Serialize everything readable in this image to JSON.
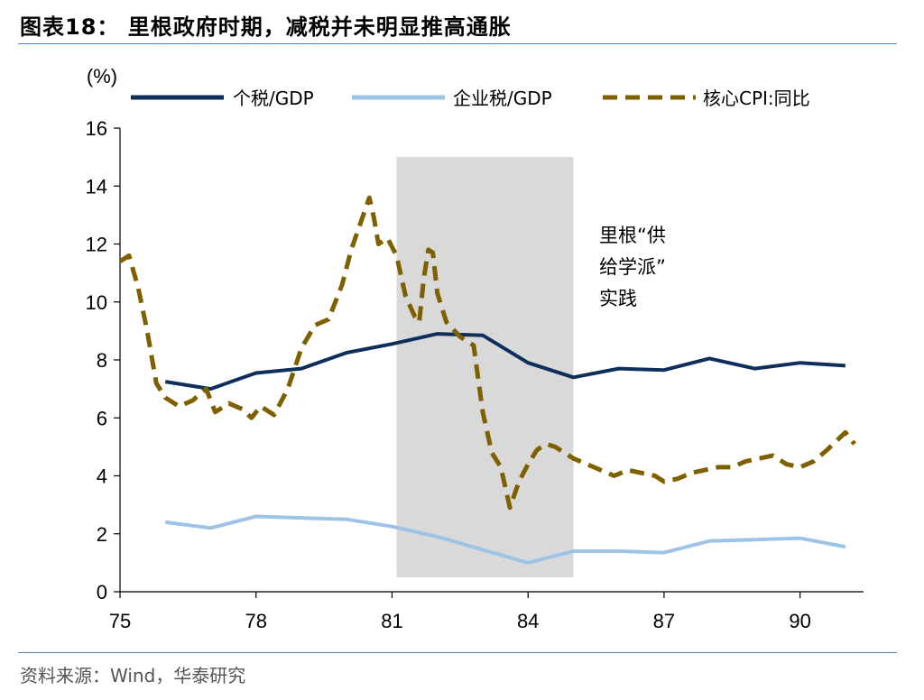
{
  "figure": {
    "title": "图表18： 里根政府时期，减税并未明显推高通胀",
    "source": "资料来源：Wind，华泰研究"
  },
  "chart_data": {
    "type": "line",
    "unit_label": "(%)",
    "xlim": [
      75,
      91.4
    ],
    "ylim": [
      0,
      16
    ],
    "x_ticks": [
      75,
      78,
      81,
      84,
      87,
      90
    ],
    "x_tick_labels": [
      "75",
      "78",
      "81",
      "84",
      "87",
      "90"
    ],
    "y_ticks": [
      0,
      2,
      4,
      6,
      8,
      10,
      12,
      14,
      16
    ],
    "y_tick_labels": [
      "0",
      "2",
      "4",
      "6",
      "8",
      "10",
      "12",
      "14",
      "16"
    ],
    "legend_position": "top",
    "shaded_region": {
      "x": [
        81.1,
        85
      ],
      "y": [
        0.5,
        15
      ],
      "color": "#d9d9d9",
      "annotation": [
        "里根“供",
        "给学派”",
        "实践"
      ]
    },
    "series": [
      {
        "name": "个税/GDP",
        "color": "#0e2f5c",
        "style": "solid",
        "x": [
          76,
          77,
          78,
          79,
          80,
          81,
          82,
          83,
          84,
          85,
          86,
          87,
          88,
          89,
          90,
          91
        ],
        "y": [
          7.25,
          7.0,
          7.55,
          7.7,
          8.25,
          8.55,
          8.9,
          8.85,
          7.9,
          7.4,
          7.7,
          7.65,
          8.05,
          7.7,
          7.9,
          7.8
        ]
      },
      {
        "name": "企业税/GDP",
        "color": "#9dc3e6",
        "style": "solid",
        "x": [
          76,
          77,
          78,
          79,
          80,
          81,
          82,
          83,
          84,
          85,
          86,
          87,
          88,
          89,
          90,
          91
        ],
        "y": [
          2.4,
          2.2,
          2.6,
          2.55,
          2.5,
          2.25,
          1.9,
          1.45,
          1.0,
          1.4,
          1.4,
          1.35,
          1.75,
          1.8,
          1.85,
          1.55
        ]
      },
      {
        "name": "核心CPI:同比",
        "color": "#7f6000",
        "style": "dashed",
        "x": [
          75.0,
          75.2,
          75.4,
          75.6,
          75.8,
          76.0,
          76.3,
          76.6,
          76.9,
          77.1,
          77.4,
          77.7,
          77.9,
          78.1,
          78.4,
          78.7,
          79.0,
          79.3,
          79.6,
          79.9,
          80.1,
          80.3,
          80.5,
          80.6,
          80.7,
          80.9,
          81.1,
          81.3,
          81.5,
          81.6,
          81.7,
          81.8,
          81.9,
          82.0,
          82.2,
          82.5,
          82.8,
          83.0,
          83.2,
          83.4,
          83.6,
          83.8,
          84.0,
          84.2,
          84.4,
          84.6,
          84.8,
          85.0,
          85.3,
          85.6,
          85.9,
          86.2,
          86.5,
          86.8,
          87.0,
          87.3,
          87.6,
          87.9,
          88.2,
          88.5,
          88.8,
          89.1,
          89.4,
          89.7,
          90.0,
          90.3,
          90.6,
          90.8,
          91.0,
          91.2
        ],
        "y": [
          11.4,
          11.6,
          10.5,
          9.0,
          7.2,
          6.7,
          6.4,
          6.6,
          7.0,
          6.2,
          6.5,
          6.3,
          6.0,
          6.4,
          6.1,
          7.0,
          8.4,
          9.2,
          9.4,
          10.6,
          11.8,
          12.7,
          13.6,
          12.9,
          12.0,
          12.2,
          11.6,
          10.2,
          9.5,
          9.3,
          10.8,
          11.8,
          11.7,
          10.3,
          9.3,
          8.8,
          8.5,
          6.2,
          4.8,
          4.3,
          2.9,
          3.8,
          4.4,
          4.9,
          5.1,
          5.0,
          4.8,
          4.6,
          4.4,
          4.2,
          4.0,
          4.2,
          4.1,
          4.0,
          3.8,
          3.9,
          4.1,
          4.2,
          4.3,
          4.3,
          4.5,
          4.6,
          4.7,
          4.4,
          4.3,
          4.5,
          4.9,
          5.2,
          5.5,
          5.1
        ]
      }
    ]
  }
}
